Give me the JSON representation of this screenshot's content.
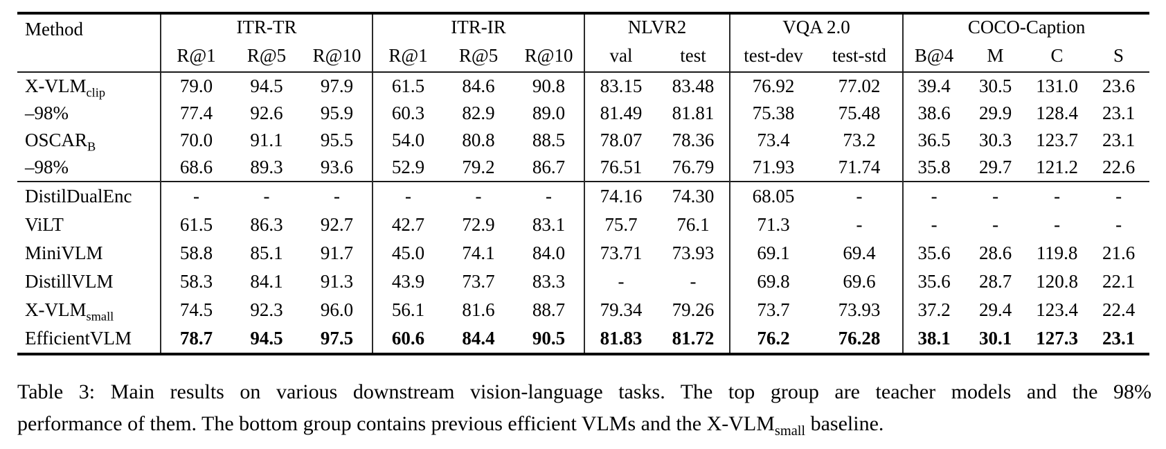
{
  "page": {
    "background_color": "#ffffff",
    "text_color": "#000000",
    "rule_color": "#000000",
    "separator_color": "#2a2a2a"
  },
  "table": {
    "header": {
      "method_label": "Method",
      "groups": [
        {
          "label": "ITR-TR",
          "cols": [
            "R@1",
            "R@5",
            "R@10"
          ]
        },
        {
          "label": "ITR-IR",
          "cols": [
            "R@1",
            "R@5",
            "R@10"
          ]
        },
        {
          "label": "NLVR2",
          "cols": [
            "val",
            "test"
          ]
        },
        {
          "label": "VQA 2.0",
          "cols": [
            "test-dev",
            "test-std"
          ]
        },
        {
          "label": "COCO-Caption",
          "cols": [
            "B@4",
            "M",
            "C",
            "S"
          ]
        }
      ]
    },
    "groups": [
      {
        "name": "teacher-models",
        "rows": [
          {
            "method": {
              "base": "X-VLM",
              "sub": "clip"
            },
            "bold": false,
            "values": [
              "79.0",
              "94.5",
              "97.9",
              "61.5",
              "84.6",
              "90.8",
              "83.15",
              "83.48",
              "76.92",
              "77.02",
              "39.4",
              "30.5",
              "131.0",
              "23.6"
            ]
          },
          {
            "method": {
              "base": "–98%",
              "sub": ""
            },
            "bold": false,
            "values": [
              "77.4",
              "92.6",
              "95.9",
              "60.3",
              "82.9",
              "89.0",
              "81.49",
              "81.81",
              "75.38",
              "75.48",
              "38.6",
              "29.9",
              "128.4",
              "23.1"
            ]
          },
          {
            "method": {
              "base": "OSCAR",
              "sub": "B"
            },
            "bold": false,
            "values": [
              "70.0",
              "91.1",
              "95.5",
              "54.0",
              "80.8",
              "88.5",
              "78.07",
              "78.36",
              "73.4",
              "73.2",
              "36.5",
              "30.3",
              "123.7",
              "23.1"
            ]
          },
          {
            "method": {
              "base": "–98%",
              "sub": ""
            },
            "bold": false,
            "values": [
              "68.6",
              "89.3",
              "93.6",
              "52.9",
              "79.2",
              "86.7",
              "76.51",
              "76.79",
              "71.93",
              "71.74",
              "35.8",
              "29.7",
              "121.2",
              "22.6"
            ]
          }
        ]
      },
      {
        "name": "efficient-vlms",
        "rows": [
          {
            "method": {
              "base": "DistilDualEnc",
              "sub": ""
            },
            "bold": false,
            "values": [
              "-",
              "-",
              "-",
              "-",
              "-",
              "-",
              "74.16",
              "74.30",
              "68.05",
              "-",
              "-",
              "-",
              "-",
              "-"
            ]
          },
          {
            "method": {
              "base": "ViLT",
              "sub": ""
            },
            "bold": false,
            "values": [
              "61.5",
              "86.3",
              "92.7",
              "42.7",
              "72.9",
              "83.1",
              "75.7",
              "76.1",
              "71.3",
              "-",
              "-",
              "-",
              "-",
              "-"
            ]
          },
          {
            "method": {
              "base": "MiniVLM",
              "sub": ""
            },
            "bold": false,
            "values": [
              "58.8",
              "85.1",
              "91.7",
              "45.0",
              "74.1",
              "84.0",
              "73.71",
              "73.93",
              "69.1",
              "69.4",
              "35.6",
              "28.6",
              "119.8",
              "21.6"
            ]
          },
          {
            "method": {
              "base": "DistillVLM",
              "sub": ""
            },
            "bold": false,
            "values": [
              "58.3",
              "84.1",
              "91.3",
              "43.9",
              "73.7",
              "83.3",
              "-",
              "-",
              "69.8",
              "69.6",
              "35.6",
              "28.7",
              "120.8",
              "22.1"
            ]
          },
          {
            "method": {
              "base": "X-VLM",
              "sub": "small"
            },
            "bold": false,
            "values": [
              "74.5",
              "92.3",
              "96.0",
              "56.1",
              "81.6",
              "88.7",
              "79.34",
              "79.26",
              "73.7",
              "73.93",
              "37.2",
              "29.4",
              "123.4",
              "22.4"
            ]
          },
          {
            "method": {
              "base": "EfficientVLM",
              "sub": ""
            },
            "bold": true,
            "values": [
              "78.7",
              "94.5",
              "97.5",
              "60.6",
              "84.4",
              "90.5",
              "81.83",
              "81.72",
              "76.2",
              "76.28",
              "38.1",
              "30.1",
              "127.3",
              "23.1"
            ]
          }
        ]
      }
    ]
  },
  "caption": {
    "lines": [
      {
        "segments": [
          {
            "text": "Table 3: Main results on various downstream vision-language tasks. The top group are teacher models and the 98%",
            "sub": false
          }
        ]
      },
      {
        "segments": [
          {
            "text": "performance of them. The bottom group contains previous efficient VLMs and the X-VLM",
            "sub": false
          },
          {
            "text": "small",
            "sub": true
          },
          {
            "text": " baseline.",
            "sub": false
          }
        ]
      }
    ]
  }
}
